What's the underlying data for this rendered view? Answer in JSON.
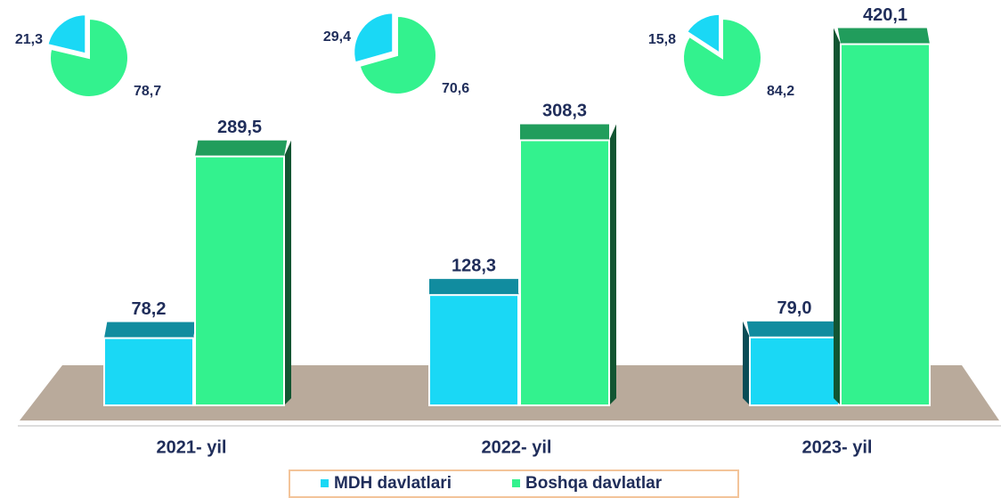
{
  "chart_data": [
    {
      "type": "bar",
      "categories": [
        "2021- yil",
        "2022- yil",
        "2023- yil"
      ],
      "series": [
        {
          "name": "MDH davlatlari",
          "color": "#1ad8f5",
          "values": [
            78.2,
            128.3,
            79.0
          ],
          "value_labels": [
            "78,2",
            "128,3",
            "79,0"
          ]
        },
        {
          "name": "Boshqa davlatlar",
          "color": "#33f28e",
          "values": [
            289.5,
            308.3,
            420.1
          ],
          "value_labels": [
            "289,5",
            "308,3",
            "420,1"
          ]
        }
      ],
      "ylim": [
        0,
        430
      ]
    },
    {
      "type": "pie",
      "values": [
        21.3,
        78.7
      ],
      "value_labels": [
        "21,3",
        "78,7"
      ],
      "colors": [
        "#1ad8f5",
        "#33f28e"
      ]
    },
    {
      "type": "pie",
      "values": [
        29.4,
        70.6
      ],
      "value_labels": [
        "29,4",
        "70,6"
      ],
      "colors": [
        "#1ad8f5",
        "#33f28e"
      ]
    },
    {
      "type": "pie",
      "values": [
        15.8,
        84.2
      ],
      "value_labels": [
        "15,8",
        "84,2"
      ],
      "colors": [
        "#1ad8f5",
        "#33f28e"
      ]
    }
  ]
}
